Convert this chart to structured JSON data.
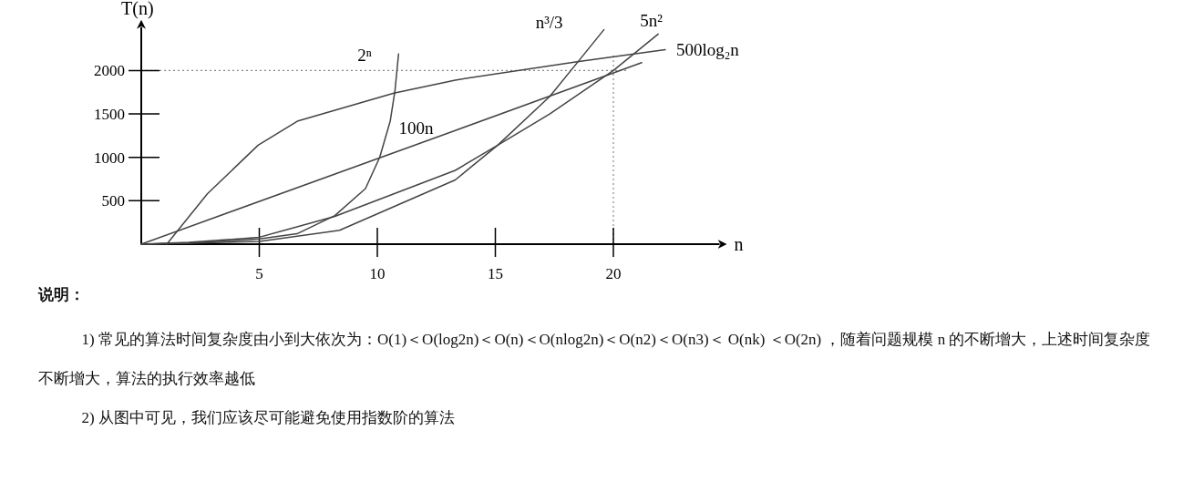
{
  "chart_data": {
    "type": "line",
    "title": "说明：",
    "xlabel": "n",
    "ylabel": "T(n)",
    "xlim": [
      0,
      24.5
    ],
    "ylim": [
      0,
      2500
    ],
    "xticks": [
      5,
      10,
      15,
      20
    ],
    "yticks": [
      500,
      1000,
      1500,
      2000
    ],
    "series": [
      {
        "name": "2ⁿ",
        "color": "#444444",
        "x": [
          0,
          2,
          5,
          6.6,
          8.2,
          9.5,
          10.1,
          10.55,
          10.75,
          10.9
        ],
        "values": [
          0,
          10,
          60,
          120,
          330,
          640,
          1000,
          1420,
          1770,
          2190
        ]
      },
      {
        "name": "100n",
        "color": "#444444",
        "x": [
          0,
          13.3,
          21.2
        ],
        "values": [
          0,
          1310,
          2090
        ]
      },
      {
        "name": "n³/3",
        "color": "#444444",
        "x": [
          0,
          5,
          8.4,
          13.3,
          15.1,
          17.3,
          18.5,
          19.6
        ],
        "values": [
          0,
          30,
          160,
          740,
          1140,
          1700,
          2100,
          2470
        ]
      },
      {
        "name": "5n²",
        "color": "#444444",
        "x": [
          0,
          2,
          5,
          8.2,
          13.3,
          15.1,
          17.3,
          20,
          21.9
        ],
        "values": [
          0,
          20,
          80,
          320,
          850,
          1140,
          1500,
          2000,
          2420
        ]
      },
      {
        "name": "500log₂n",
        "color": "#444444",
        "x": [
          1.08,
          2.8,
          4.95,
          6.64,
          10.7,
          13.3,
          18.4,
          22.2
        ],
        "values": [
          0,
          580,
          1140,
          1420,
          1740,
          1890,
          2100,
          2240
        ]
      }
    ],
    "ref_lines": [
      {
        "axis": "y",
        "value": 2000,
        "line_style": "dotted",
        "color": "#888888"
      },
      {
        "axis": "x",
        "value": 20,
        "line_style": "dotted",
        "color": "#888888"
      }
    ],
    "annotations": [
      "1) 常见的算法时间复杂度由小到大依次为：Ο(1)＜Ο(log2n)＜Ο(n)＜Ο(nlog2n)＜Ο(n2)＜Ο(n3)＜ Ο(nk) ＜Ο(2n) ，随着问题规模 n 的不断增大，上述时间复杂度不断增大，算法的执行效率越低",
      "2) 从图中可见，我们应该尽可能避免使用指数阶的算法"
    ]
  }
}
